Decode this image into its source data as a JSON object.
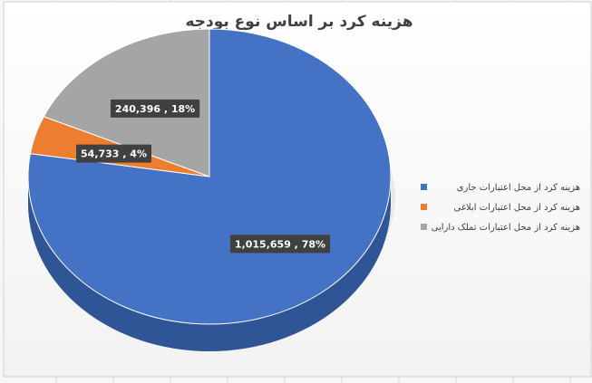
{
  "chart_data": {
    "type": "pie",
    "title": "هزینه کرد بر اساس نوع بودجه",
    "categories": [
      "هزینه کرد از محل اعتبارات جاری",
      "هزینه کرد از محل اعتبارات ابلاغی",
      "هزینه کرد از محل اعتبارات تملک دارایی"
    ],
    "values": [
      1015659,
      54733,
      240396
    ],
    "value_labels": [
      "1,015,659 , 78%",
      "54,733 , 4%",
      "240,396 , 18%"
    ],
    "colors": [
      "#4472c4",
      "#ed7d31",
      "#a5a5a5"
    ],
    "legend": "right"
  }
}
